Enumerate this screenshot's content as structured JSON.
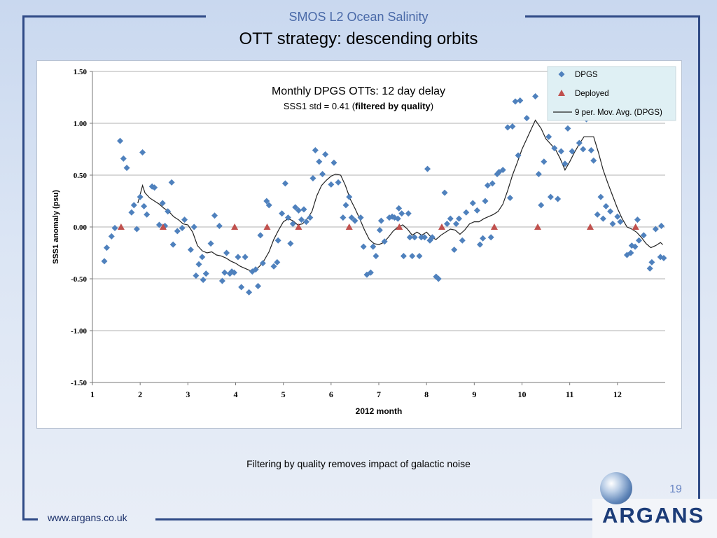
{
  "slide": {
    "header": "SMOS L2 Ocean Salinity",
    "title": "OTT strategy: descending orbits",
    "caption": "Filtering by quality removes impact of galactic noise",
    "page_number": "19",
    "website": "www.argans.co.uk",
    "logo_text": "ARGANS"
  },
  "chart_data": {
    "type": "scatter",
    "title": "Monthly DPGS OTTs: 12 day delay",
    "subtitle_prefix": "SSS1 std = 0.41 (",
    "subtitle_bold": "filtered by quality",
    "subtitle_suffix": ")",
    "xlabel": "2012 month",
    "ylabel": "SSS1 anomaly (psu)",
    "xlim": [
      1,
      13
    ],
    "ylim": [
      -1.5,
      1.5
    ],
    "x_ticks": [
      "1",
      "2",
      "3",
      "4",
      "5",
      "6",
      "7",
      "8",
      "9",
      "10",
      "11",
      "12"
    ],
    "y_ticks": [
      "1.50",
      "1.00",
      "0.50",
      "0.00",
      "-0.50",
      "-1.00",
      "-1.50"
    ],
    "grid": "horizontal",
    "legend_position": "top-right",
    "series": [
      {
        "name": "DPGS",
        "marker": "diamond",
        "color": "#4f81bd",
        "points": [
          [
            1.25,
            -0.33
          ],
          [
            1.3,
            -0.2
          ],
          [
            1.4,
            -0.09
          ],
          [
            1.47,
            -0.01
          ],
          [
            1.58,
            0.83
          ],
          [
            1.65,
            0.66
          ],
          [
            1.72,
            0.57
          ],
          [
            1.82,
            0.14
          ],
          [
            1.87,
            0.21
          ],
          [
            1.93,
            -0.02
          ],
          [
            2.0,
            0.29
          ],
          [
            2.05,
            0.72
          ],
          [
            2.08,
            0.2
          ],
          [
            2.14,
            0.12
          ],
          [
            2.25,
            0.39
          ],
          [
            2.3,
            0.38
          ],
          [
            2.4,
            0.02
          ],
          [
            2.47,
            0.23
          ],
          [
            2.52,
            0.01
          ],
          [
            2.58,
            0.15
          ],
          [
            2.66,
            0.43
          ],
          [
            2.69,
            -0.17
          ],
          [
            2.78,
            -0.04
          ],
          [
            2.88,
            -0.01
          ],
          [
            2.93,
            0.07
          ],
          [
            3.06,
            -0.22
          ],
          [
            3.13,
            0.0
          ],
          [
            3.17,
            -0.47
          ],
          [
            3.23,
            -0.36
          ],
          [
            3.3,
            -0.29
          ],
          [
            3.32,
            -0.51
          ],
          [
            3.38,
            -0.45
          ],
          [
            3.48,
            -0.16
          ],
          [
            3.56,
            0.11
          ],
          [
            3.66,
            0.01
          ],
          [
            3.72,
            -0.52
          ],
          [
            3.77,
            -0.44
          ],
          [
            3.81,
            -0.25
          ],
          [
            3.88,
            -0.45
          ],
          [
            3.92,
            -0.43
          ],
          [
            3.97,
            -0.44
          ],
          [
            4.05,
            -0.29
          ],
          [
            4.12,
            -0.58
          ],
          [
            4.2,
            -0.29
          ],
          [
            4.28,
            -0.63
          ],
          [
            4.35,
            -0.43
          ],
          [
            4.42,
            -0.41
          ],
          [
            4.47,
            -0.57
          ],
          [
            4.52,
            -0.08
          ],
          [
            4.57,
            -0.35
          ],
          [
            4.65,
            0.25
          ],
          [
            4.7,
            0.21
          ],
          [
            4.8,
            -0.38
          ],
          [
            4.87,
            -0.34
          ],
          [
            4.89,
            -0.13
          ],
          [
            4.97,
            0.13
          ],
          [
            5.04,
            0.42
          ],
          [
            5.1,
            0.09
          ],
          [
            5.15,
            -0.16
          ],
          [
            5.2,
            0.03
          ],
          [
            5.25,
            0.19
          ],
          [
            5.32,
            0.16
          ],
          [
            5.38,
            0.07
          ],
          [
            5.43,
            0.17
          ],
          [
            5.48,
            0.05
          ],
          [
            5.56,
            0.09
          ],
          [
            5.62,
            0.47
          ],
          [
            5.67,
            0.74
          ],
          [
            5.75,
            0.63
          ],
          [
            5.82,
            0.51
          ],
          [
            5.88,
            0.7
          ],
          [
            6.0,
            0.41
          ],
          [
            6.06,
            0.62
          ],
          [
            6.15,
            0.43
          ],
          [
            6.25,
            0.09
          ],
          [
            6.31,
            0.21
          ],
          [
            6.38,
            0.29
          ],
          [
            6.43,
            0.09
          ],
          [
            6.5,
            0.06
          ],
          [
            6.62,
            0.09
          ],
          [
            6.68,
            -0.19
          ],
          [
            6.75,
            -0.46
          ],
          [
            6.83,
            -0.44
          ],
          [
            6.88,
            -0.19
          ],
          [
            6.94,
            -0.28
          ],
          [
            7.02,
            -0.03
          ],
          [
            7.05,
            0.06
          ],
          [
            7.12,
            -0.14
          ],
          [
            7.22,
            0.09
          ],
          [
            7.28,
            0.1
          ],
          [
            7.33,
            0.09
          ],
          [
            7.4,
            0.08
          ],
          [
            7.42,
            0.18
          ],
          [
            7.48,
            0.13
          ],
          [
            7.52,
            -0.28
          ],
          [
            7.62,
            0.13
          ],
          [
            7.65,
            -0.1
          ],
          [
            7.7,
            -0.28
          ],
          [
            7.75,
            -0.1
          ],
          [
            7.85,
            -0.28
          ],
          [
            7.89,
            -0.1
          ],
          [
            7.96,
            -0.1
          ],
          [
            8.02,
            0.56
          ],
          [
            8.07,
            -0.13
          ],
          [
            8.12,
            -0.1
          ],
          [
            8.2,
            -0.48
          ],
          [
            8.25,
            -0.5
          ],
          [
            8.38,
            0.33
          ],
          [
            8.43,
            0.03
          ],
          [
            8.5,
            0.08
          ],
          [
            8.58,
            -0.22
          ],
          [
            8.62,
            0.03
          ],
          [
            8.68,
            0.08
          ],
          [
            8.75,
            -0.13
          ],
          [
            8.83,
            0.14
          ],
          [
            8.97,
            0.23
          ],
          [
            9.06,
            0.16
          ],
          [
            9.12,
            -0.17
          ],
          [
            9.18,
            -0.11
          ],
          [
            9.23,
            0.25
          ],
          [
            9.28,
            0.4
          ],
          [
            9.35,
            -0.1
          ],
          [
            9.38,
            0.42
          ],
          [
            9.48,
            0.51
          ],
          [
            9.52,
            0.53
          ],
          [
            9.6,
            0.55
          ],
          [
            9.7,
            0.96
          ],
          [
            9.75,
            0.28
          ],
          [
            9.8,
            0.97
          ],
          [
            9.86,
            1.21
          ],
          [
            9.92,
            0.69
          ],
          [
            9.96,
            1.22
          ],
          [
            10.1,
            1.05
          ],
          [
            10.28,
            1.26
          ],
          [
            10.35,
            0.51
          ],
          [
            10.4,
            0.21
          ],
          [
            10.46,
            0.63
          ],
          [
            10.56,
            0.87
          ],
          [
            10.6,
            0.29
          ],
          [
            10.68,
            0.76
          ],
          [
            10.75,
            0.27
          ],
          [
            10.82,
            0.73
          ],
          [
            10.9,
            0.61
          ],
          [
            10.96,
            0.95
          ],
          [
            11.05,
            0.73
          ],
          [
            11.2,
            0.81
          ],
          [
            11.28,
            0.75
          ],
          [
            11.35,
            1.04
          ],
          [
            11.45,
            0.74
          ],
          [
            11.5,
            0.64
          ],
          [
            11.58,
            0.12
          ],
          [
            11.65,
            0.29
          ],
          [
            11.7,
            0.08
          ],
          [
            11.76,
            0.2
          ],
          [
            11.85,
            0.15
          ],
          [
            11.9,
            0.03
          ],
          [
            12.0,
            0.1
          ],
          [
            12.06,
            0.05
          ],
          [
            12.2,
            -0.27
          ],
          [
            12.28,
            -0.25
          ],
          [
            12.3,
            -0.18
          ],
          [
            12.37,
            -0.19
          ],
          [
            12.42,
            0.07
          ],
          [
            12.45,
            -0.13
          ],
          [
            12.55,
            -0.08
          ],
          [
            12.68,
            -0.4
          ],
          [
            12.72,
            -0.34
          ],
          [
            12.8,
            -0.02
          ],
          [
            12.9,
            -0.29
          ],
          [
            12.92,
            0.01
          ],
          [
            12.97,
            -0.3
          ]
        ]
      },
      {
        "name": "Deployed",
        "marker": "triangle",
        "color": "#c0504d",
        "points": [
          [
            1.6,
            0.0
          ],
          [
            2.48,
            0.0
          ],
          [
            3.98,
            0.0
          ],
          [
            4.66,
            0.0
          ],
          [
            5.32,
            0.0
          ],
          [
            6.38,
            0.0
          ],
          [
            7.43,
            0.0
          ],
          [
            8.32,
            0.0
          ],
          [
            9.42,
            0.0
          ],
          [
            10.33,
            0.0
          ],
          [
            11.43,
            0.0
          ],
          [
            12.38,
            0.0
          ]
        ]
      },
      {
        "name": "9 per. Mov. Avg. (DPGS)",
        "marker": "line",
        "color": "#222222",
        "points": [
          [
            1.95,
            0.23
          ],
          [
            2.05,
            0.4
          ],
          [
            2.1,
            0.33
          ],
          [
            2.2,
            0.28
          ],
          [
            2.3,
            0.25
          ],
          [
            2.4,
            0.22
          ],
          [
            2.5,
            0.18
          ],
          [
            2.6,
            0.15
          ],
          [
            2.7,
            0.1
          ],
          [
            2.8,
            0.07
          ],
          [
            2.9,
            0.03
          ],
          [
            3.0,
            0.02
          ],
          [
            3.1,
            -0.05
          ],
          [
            3.2,
            -0.18
          ],
          [
            3.3,
            -0.23
          ],
          [
            3.4,
            -0.25
          ],
          [
            3.5,
            -0.24
          ],
          [
            3.6,
            -0.27
          ],
          [
            3.7,
            -0.28
          ],
          [
            3.8,
            -0.3
          ],
          [
            3.9,
            -0.33
          ],
          [
            4.0,
            -0.35
          ],
          [
            4.1,
            -0.38
          ],
          [
            4.2,
            -0.4
          ],
          [
            4.3,
            -0.42
          ],
          [
            4.4,
            -0.42
          ],
          [
            4.5,
            -0.38
          ],
          [
            4.6,
            -0.32
          ],
          [
            4.7,
            -0.24
          ],
          [
            4.8,
            -0.12
          ],
          [
            4.9,
            -0.03
          ],
          [
            5.0,
            0.05
          ],
          [
            5.1,
            0.08
          ],
          [
            5.2,
            0.06
          ],
          [
            5.3,
            0.02
          ],
          [
            5.4,
            0.03
          ],
          [
            5.5,
            0.08
          ],
          [
            5.6,
            0.15
          ],
          [
            5.7,
            0.3
          ],
          [
            5.8,
            0.4
          ],
          [
            5.9,
            0.45
          ],
          [
            6.0,
            0.49
          ],
          [
            6.1,
            0.51
          ],
          [
            6.2,
            0.5
          ],
          [
            6.3,
            0.4
          ],
          [
            6.4,
            0.27
          ],
          [
            6.5,
            0.18
          ],
          [
            6.6,
            0.08
          ],
          [
            6.7,
            -0.03
          ],
          [
            6.8,
            -0.12
          ],
          [
            6.9,
            -0.16
          ],
          [
            7.0,
            -0.17
          ],
          [
            7.1,
            -0.15
          ],
          [
            7.2,
            -0.1
          ],
          [
            7.3,
            -0.04
          ],
          [
            7.4,
            0.0
          ],
          [
            7.5,
            0.02
          ],
          [
            7.6,
            -0.02
          ],
          [
            7.7,
            -0.08
          ],
          [
            7.8,
            -0.05
          ],
          [
            7.9,
            -0.08
          ],
          [
            8.0,
            -0.05
          ],
          [
            8.1,
            -0.1
          ],
          [
            8.2,
            -0.12
          ],
          [
            8.3,
            -0.08
          ],
          [
            8.4,
            -0.05
          ],
          [
            8.5,
            -0.02
          ],
          [
            8.6,
            -0.03
          ],
          [
            8.7,
            -0.07
          ],
          [
            8.8,
            -0.03
          ],
          [
            8.9,
            0.03
          ],
          [
            9.0,
            0.05
          ],
          [
            9.1,
            0.05
          ],
          [
            9.2,
            0.08
          ],
          [
            9.3,
            0.1
          ],
          [
            9.4,
            0.12
          ],
          [
            9.5,
            0.15
          ],
          [
            9.6,
            0.22
          ],
          [
            9.7,
            0.35
          ],
          [
            9.8,
            0.5
          ],
          [
            9.9,
            0.62
          ],
          [
            10.0,
            0.75
          ],
          [
            10.1,
            0.85
          ],
          [
            10.2,
            0.95
          ],
          [
            10.28,
            1.03
          ],
          [
            10.4,
            0.95
          ],
          [
            10.5,
            0.85
          ],
          [
            10.6,
            0.8
          ],
          [
            10.7,
            0.75
          ],
          [
            10.8,
            0.66
          ],
          [
            10.9,
            0.55
          ],
          [
            11.0,
            0.63
          ],
          [
            11.1,
            0.72
          ],
          [
            11.2,
            0.8
          ],
          [
            11.3,
            0.87
          ],
          [
            11.4,
            0.87
          ],
          [
            11.5,
            0.87
          ],
          [
            11.6,
            0.72
          ],
          [
            11.7,
            0.55
          ],
          [
            11.8,
            0.42
          ],
          [
            11.9,
            0.3
          ],
          [
            12.0,
            0.18
          ],
          [
            12.1,
            0.08
          ],
          [
            12.2,
            0.0
          ],
          [
            12.3,
            -0.02
          ],
          [
            12.4,
            -0.05
          ],
          [
            12.5,
            -0.1
          ],
          [
            12.6,
            -0.16
          ],
          [
            12.7,
            -0.2
          ],
          [
            12.8,
            -0.18
          ],
          [
            12.9,
            -0.15
          ],
          [
            12.95,
            -0.17
          ]
        ]
      }
    ]
  }
}
